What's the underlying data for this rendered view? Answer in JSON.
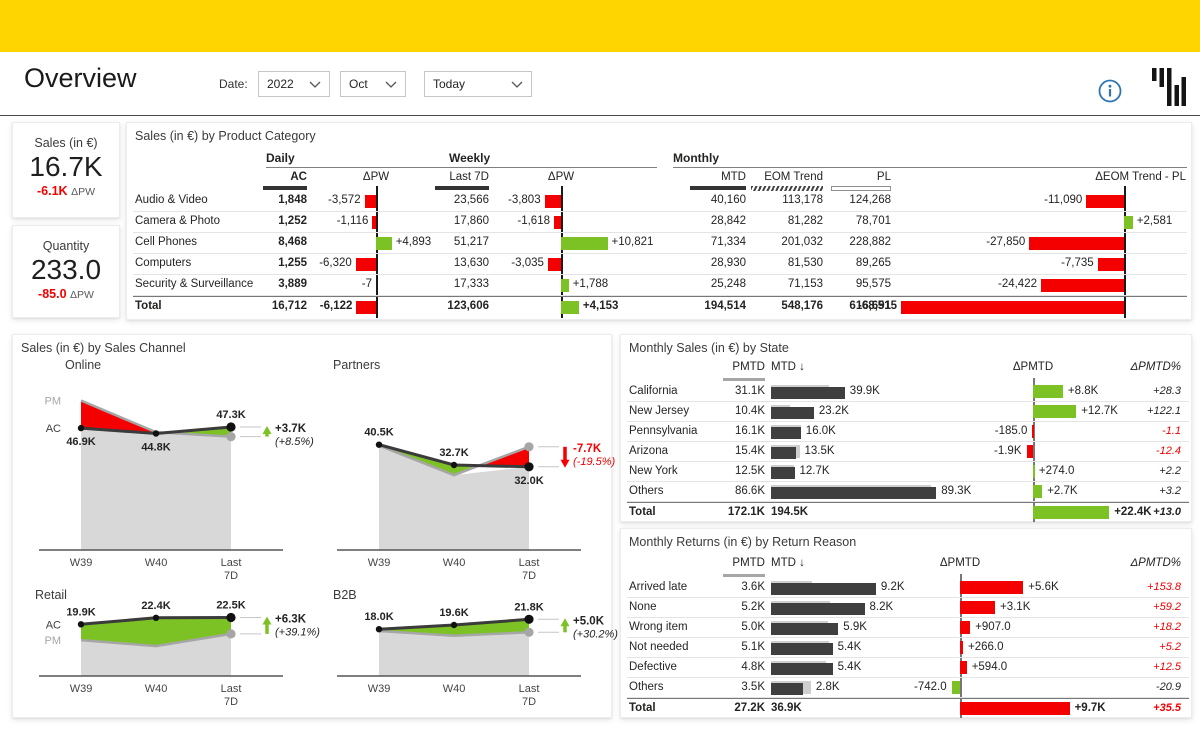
{
  "colors": {
    "accent_yellow": "#FFD500",
    "positive": "#7DC225",
    "negative": "#F40000",
    "neutral_dark": "#3F3F3F",
    "pm_gray": "#A6A6A6",
    "info_blue": "#2E75B6"
  },
  "header": {
    "title": "Overview",
    "date_label": "Date:",
    "filters": [
      {
        "value": "2022"
      },
      {
        "value": "Oct"
      },
      {
        "value": "Today"
      }
    ]
  },
  "kpis": [
    {
      "title": "Sales (in €)",
      "value": "16.7K",
      "delta": "-6.1K",
      "delta_label": "ΔPW"
    },
    {
      "title": "Quantity",
      "value": "233.0",
      "delta": "-85.0",
      "delta_label": "ΔPW"
    }
  ],
  "product_table": {
    "title": "Sales (in €) by Product Category",
    "group_headers": {
      "daily": "Daily",
      "weekly": "Weekly",
      "monthly": "Monthly"
    },
    "col_headers": {
      "ac": "AC",
      "dpw": "ΔPW",
      "last7d": "Last 7D",
      "wdpw": "ΔPW",
      "mtd": "MTD",
      "eom": "EOM Trend",
      "pl": "PL",
      "deom": "ΔEOM Trend - PL"
    },
    "rows": [
      {
        "label": "Audio & Video",
        "ac": "1,848",
        "dpw": {
          "v": -3572,
          "label": "-3,572"
        },
        "last7d": "23,566",
        "wdpw": {
          "v": -3803,
          "label": "-3,803"
        },
        "mtd": "40,160",
        "eom": "113,178",
        "pl": "124,268",
        "deom": {
          "v": -11090,
          "label": "-11,090"
        }
      },
      {
        "label": "Camera & Photo",
        "ac": "1,252",
        "dpw": {
          "v": -1116,
          "label": "-1,116"
        },
        "last7d": "17,860",
        "wdpw": {
          "v": -1618,
          "label": "-1,618"
        },
        "mtd": "28,842",
        "eom": "81,282",
        "pl": "78,701",
        "deom": {
          "v": 2581,
          "label": "+2,581"
        }
      },
      {
        "label": "Cell Phones",
        "ac": "8,468",
        "dpw": {
          "v": 4893,
          "label": "+4,893"
        },
        "last7d": "51,217",
        "wdpw": {
          "v": 10821,
          "label": "+10,821"
        },
        "mtd": "71,334",
        "eom": "201,032",
        "pl": "228,882",
        "deom": {
          "v": -27850,
          "label": "-27,850"
        }
      },
      {
        "label": "Computers",
        "ac": "1,255",
        "dpw": {
          "v": -6320,
          "label": "-6,320"
        },
        "last7d": "13,630",
        "wdpw": {
          "v": -3035,
          "label": "-3,035"
        },
        "mtd": "28,930",
        "eom": "81,530",
        "pl": "89,265",
        "deom": {
          "v": -7735,
          "label": "-7,735"
        }
      },
      {
        "label": "Security & Surveillance",
        "ac": "3,889",
        "dpw": {
          "v": -7,
          "label": "-7"
        },
        "last7d": "17,333",
        "wdpw": {
          "v": 1788,
          "label": "+1,788"
        },
        "mtd": "25,248",
        "eom": "71,153",
        "pl": "95,575",
        "deom": {
          "v": -24422,
          "label": "-24,422"
        }
      }
    ],
    "total": {
      "label": "Total",
      "ac": "16,712",
      "dpw": {
        "v": -6122,
        "label": "-6,122"
      },
      "last7d": "123,606",
      "wdpw": {
        "v": 4153,
        "label": "+4,153"
      },
      "mtd": "194,514",
      "eom": "548,176",
      "pl": "616,691",
      "deom": {
        "v": -68515,
        "label": "-68,515"
      }
    }
  },
  "channel_panel": {
    "title": "Sales (in €) by Sales Channel",
    "x_labels": [
      "W39",
      "W40",
      "Last 7D"
    ],
    "charts": [
      {
        "name": "Online",
        "type": "area",
        "ac": [
          46.9,
          44.8,
          47.3
        ],
        "pm": [
          57.5,
          45.3,
          43.6
        ],
        "ac_labels": [
          "46.9K",
          "44.8K",
          "47.3K"
        ],
        "label_pos": [
          "below",
          "below",
          "above"
        ],
        "variance": {
          "value": "+3.7K",
          "pct": "(+8.5%)",
          "positive": true
        },
        "legend": [
          "PM",
          "AC"
        ]
      },
      {
        "name": "Partners",
        "type": "area",
        "ac": [
          40.5,
          32.7,
          32.0
        ],
        "pm": [
          40.2,
          28.8,
          39.7
        ],
        "ac_labels": [
          "40.5K",
          "32.7K",
          "32.0K"
        ],
        "label_pos": [
          "above",
          "above",
          "below"
        ],
        "variance": {
          "value": "-7.7K",
          "pct": "(-19.5%)",
          "positive": false
        },
        "legend": []
      },
      {
        "name": "Retail",
        "type": "area",
        "ac": [
          19.9,
          22.4,
          22.5
        ],
        "pm": [
          13.8,
          11.5,
          16.2
        ],
        "ac_labels": [
          "19.9K",
          "22.4K",
          "22.5K"
        ],
        "label_pos": [
          "above",
          "above",
          "above"
        ],
        "variance": {
          "value": "+6.3K",
          "pct": "(+39.1%)",
          "positive": true
        },
        "legend": [
          "AC",
          "PM"
        ]
      },
      {
        "name": "B2B",
        "type": "area",
        "ac": [
          18.0,
          19.6,
          21.8
        ],
        "pm": [
          17.3,
          15.5,
          16.8
        ],
        "ac_labels": [
          "18.0K",
          "19.6K",
          "21.8K"
        ],
        "label_pos": [
          "above",
          "above",
          "above"
        ],
        "variance": {
          "value": "+5.0K",
          "pct": "(+30.2%)",
          "positive": true
        },
        "legend": []
      }
    ]
  },
  "state_table": {
    "title": "Monthly Sales (in €) by State",
    "inverted": false,
    "headers": {
      "pmtd": "PMTD",
      "mtd": "MTD ↓",
      "dpmtd": "ΔPMTD",
      "pct": "ΔPMTD%"
    },
    "rows": [
      {
        "label": "California",
        "pmtd": {
          "v": 31.1,
          "label": "31.1K"
        },
        "mtd": {
          "v": 39.9,
          "label": "39.9K"
        },
        "dpmtd": {
          "v": 8.8,
          "label": "+8.8K"
        },
        "pct": {
          "label": "+28.3",
          "bad": false
        }
      },
      {
        "label": "New Jersey",
        "pmtd": {
          "v": 10.4,
          "label": "10.4K"
        },
        "mtd": {
          "v": 23.2,
          "label": "23.2K"
        },
        "dpmtd": {
          "v": 12.7,
          "label": "+12.7K"
        },
        "pct": {
          "label": "+122.1",
          "bad": false
        }
      },
      {
        "label": "Pennsylvania",
        "pmtd": {
          "v": 16.1,
          "label": "16.1K"
        },
        "mtd": {
          "v": 16.0,
          "label": "16.0K"
        },
        "dpmtd": {
          "v": -0.185,
          "label": "-185.0"
        },
        "pct": {
          "label": "-1.1",
          "bad": true
        }
      },
      {
        "label": "Arizona",
        "pmtd": {
          "v": 15.4,
          "label": "15.4K"
        },
        "mtd": {
          "v": 13.5,
          "label": "13.5K"
        },
        "dpmtd": {
          "v": -1.9,
          "label": "-1.9K"
        },
        "pct": {
          "label": "-12.4",
          "bad": true
        }
      },
      {
        "label": "New York",
        "pmtd": {
          "v": 12.5,
          "label": "12.5K"
        },
        "mtd": {
          "v": 12.7,
          "label": "12.7K"
        },
        "dpmtd": {
          "v": 0.274,
          "label": "+274.0"
        },
        "pct": {
          "label": "+2.2",
          "bad": false
        }
      },
      {
        "label": "Others",
        "pmtd": {
          "v": 86.6,
          "label": "86.6K"
        },
        "mtd": {
          "v": 89.3,
          "label": "89.3K"
        },
        "dpmtd": {
          "v": 2.7,
          "label": "+2.7K"
        },
        "pct": {
          "label": "+3.2",
          "bad": false
        }
      }
    ],
    "total": {
      "label": "Total",
      "pmtd": "172.1K",
      "mtd": "194.5K",
      "dpmtd": {
        "v": 22.4,
        "label": "+22.4K"
      },
      "pct": {
        "label": "+13.0",
        "bad": false
      }
    }
  },
  "returns_table": {
    "title": "Monthly Returns (in €) by Return Reason",
    "inverted": true,
    "headers": {
      "pmtd": "PMTD",
      "mtd": "MTD ↓",
      "dpmtd": "ΔPMTD",
      "pct": "ΔPMTD%"
    },
    "rows": [
      {
        "label": "Arrived late",
        "pmtd": {
          "v": 3.6,
          "label": "3.6K"
        },
        "mtd": {
          "v": 9.2,
          "label": "9.2K"
        },
        "dpmtd": {
          "v": 5.6,
          "label": "+5.6K"
        },
        "pct": {
          "label": "+153.8",
          "bad": true
        }
      },
      {
        "label": "None",
        "pmtd": {
          "v": 5.2,
          "label": "5.2K"
        },
        "mtd": {
          "v": 8.2,
          "label": "8.2K"
        },
        "dpmtd": {
          "v": 3.1,
          "label": "+3.1K"
        },
        "pct": {
          "label": "+59.2",
          "bad": true
        }
      },
      {
        "label": "Wrong item",
        "pmtd": {
          "v": 5.0,
          "label": "5.0K"
        },
        "mtd": {
          "v": 5.9,
          "label": "5.9K"
        },
        "dpmtd": {
          "v": 0.907,
          "label": "+907.0"
        },
        "pct": {
          "label": "+18.2",
          "bad": true
        }
      },
      {
        "label": "Not needed",
        "pmtd": {
          "v": 5.1,
          "label": "5.1K"
        },
        "mtd": {
          "v": 5.4,
          "label": "5.4K"
        },
        "dpmtd": {
          "v": 0.266,
          "label": "+266.0"
        },
        "pct": {
          "label": "+5.2",
          "bad": true
        }
      },
      {
        "label": "Defective",
        "pmtd": {
          "v": 4.8,
          "label": "4.8K"
        },
        "mtd": {
          "v": 5.4,
          "label": "5.4K"
        },
        "dpmtd": {
          "v": 0.594,
          "label": "+594.0"
        },
        "pct": {
          "label": "+12.5",
          "bad": true
        }
      },
      {
        "label": "Others",
        "pmtd": {
          "v": 3.5,
          "label": "3.5K"
        },
        "mtd": {
          "v": 2.8,
          "label": "2.8K"
        },
        "dpmtd": {
          "v": -0.742,
          "label": "-742.0"
        },
        "pct": {
          "label": "-20.9",
          "bad": false
        }
      }
    ],
    "total": {
      "label": "Total",
      "pmtd": "27.2K",
      "mtd": "36.9K",
      "dpmtd": {
        "v": 9.7,
        "label": "+9.7K"
      },
      "pct": {
        "label": "+35.5",
        "bad": true
      }
    }
  }
}
